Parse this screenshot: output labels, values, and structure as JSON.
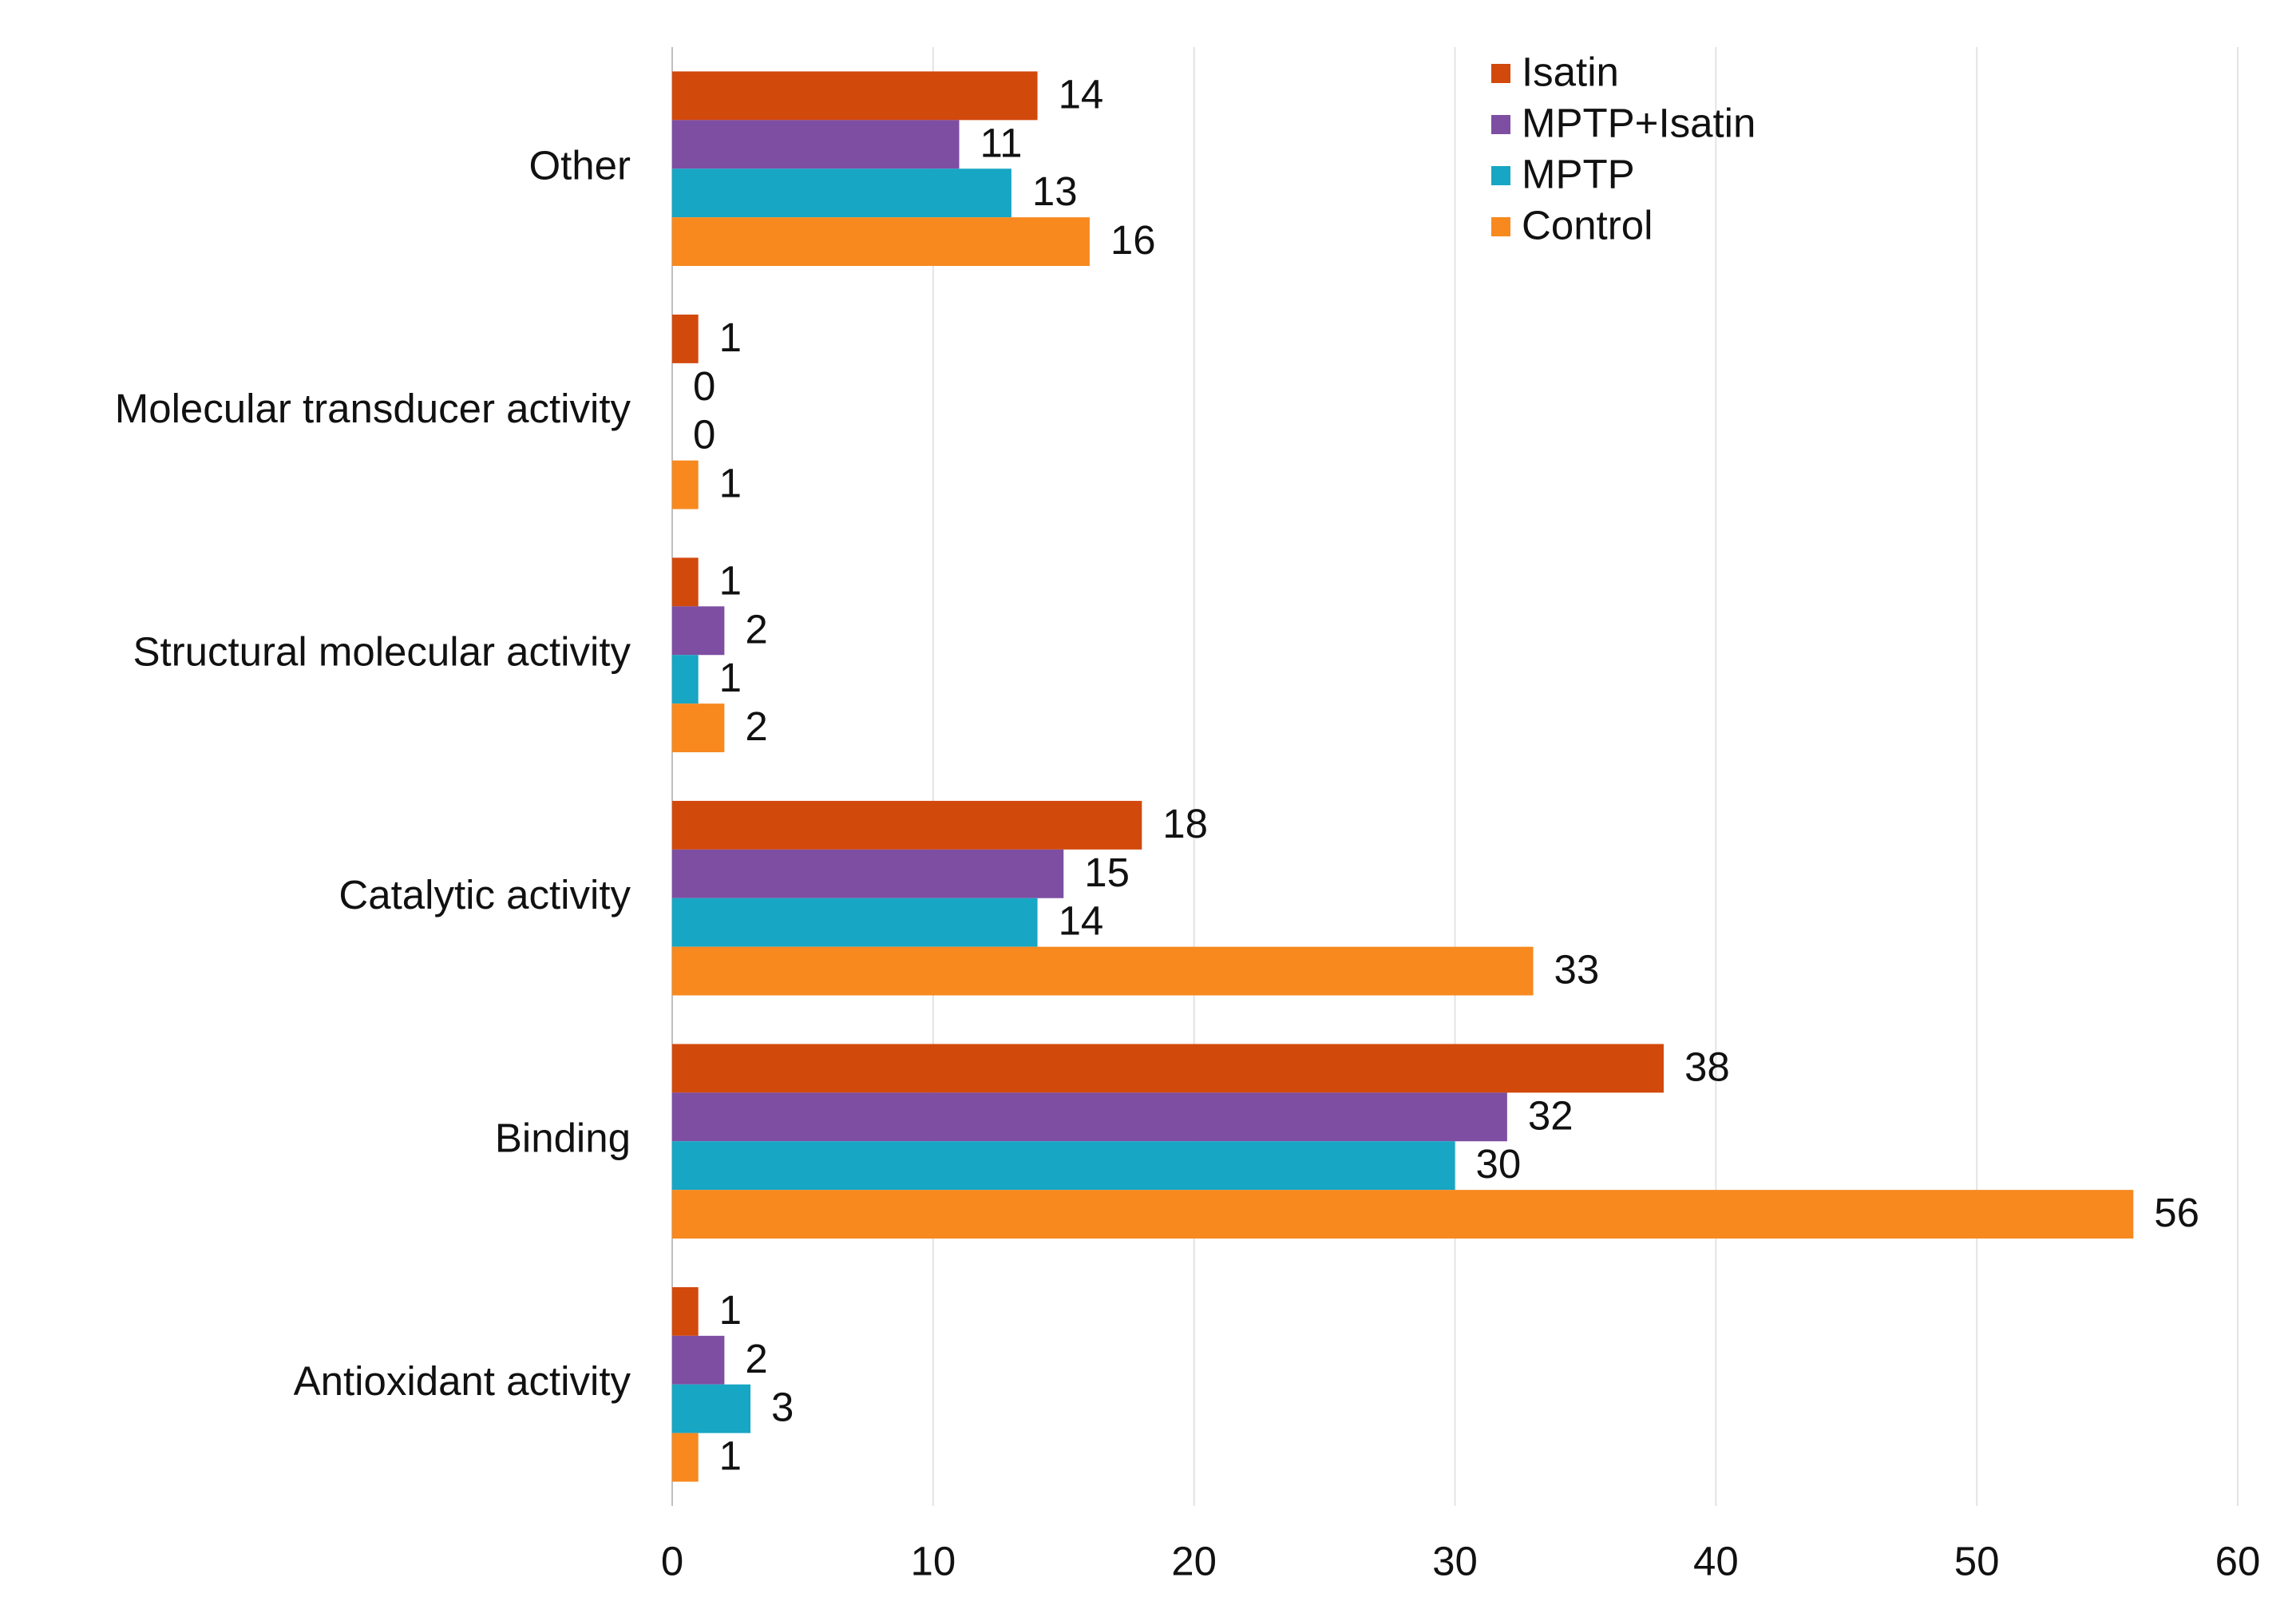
{
  "chart_data": {
    "type": "bar",
    "orientation": "horizontal",
    "categories": [
      "Antioxidant activity",
      "Binding",
      "Catalytic activity",
      "Structural molecular activity",
      "Molecular transducer activity",
      "Other"
    ],
    "series": [
      {
        "name": "Isatin",
        "color": "#d2490c",
        "values": [
          1,
          38,
          18,
          1,
          1,
          14
        ]
      },
      {
        "name": "MPTP+Isatin",
        "color": "#7d4ea2",
        "values": [
          2,
          32,
          15,
          2,
          0,
          11
        ]
      },
      {
        "name": "MPTP",
        "color": "#17a6c4",
        "values": [
          3,
          30,
          14,
          1,
          0,
          13
        ]
      },
      {
        "name": "Control",
        "color": "#f7891f",
        "values": [
          1,
          56,
          33,
          2,
          1,
          16
        ]
      }
    ],
    "xlim": [
      0,
      60
    ],
    "xticks": [
      0,
      10,
      20,
      30,
      40,
      50,
      60
    ],
    "grid": true,
    "legend": "top-right",
    "data_labels": true
  }
}
